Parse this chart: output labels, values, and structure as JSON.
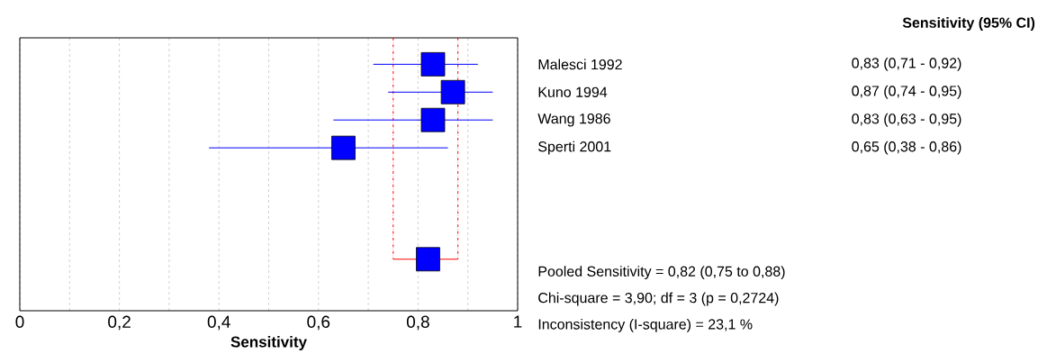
{
  "chart_data": {
    "type": "scatter",
    "orientation": "horizontal",
    "xlabel": "Sensitivity",
    "categories": [
      "Malesci 1992",
      "Kuno 1994",
      "Wang 1986",
      "Sperti 2001",
      null,
      null,
      null,
      null
    ],
    "series": [
      {
        "color": "#0000ff",
        "values": [
          0.83,
          0.87,
          0.83,
          0.65,
          null,
          null,
          null,
          null
        ],
        "errors": [
          [
            0.71,
            0.92
          ],
          [
            0.74,
            0.95
          ],
          [
            0.63,
            0.95
          ],
          [
            0.38,
            0.86
          ],
          null,
          null,
          null,
          null
        ],
        "value_labels": [
          "0,83    (0,71 - 0,92)",
          "0,87    (0,74 - 0,95)",
          "0,83    (0,63 - 0,95)",
          "0,65    (0,38 - 0,86)",
          null,
          null,
          null,
          null
        ]
      },
      {
        "color": "#0000ff",
        "values": [
          null,
          null,
          null,
          null,
          null,
          null,
          null,
          0.82
        ]
      }
    ],
    "xlim": [
      0,
      1
    ],
    "xticks": [
      0,
      {
        "value": 0.1,
        "label": null
      },
      {
        "value": 0.2,
        "label": "0,2"
      },
      {
        "value": 0.3,
        "label": null
      },
      {
        "value": 0.4,
        "label": "0,4"
      },
      {
        "value": 0.5,
        "label": null
      },
      {
        "value": 0.6,
        "label": "0,6"
      },
      {
        "value": 0.7,
        "label": null
      },
      {
        "value": 0.8,
        "label": "0,8"
      },
      {
        "value": 0.9,
        "label": null
      },
      1
    ],
    "ref_lines": [
      {
        "axis": "x",
        "value": 0.75,
        "color": "#ff0000",
        "line_style": "dashed"
      },
      {
        "axis": "x",
        "value": 0.88,
        "color": "#ff0000",
        "line_style": "dashed"
      }
    ],
    "annotations": [
      "Sensitivity (95% CI)",
      "Pooled Sensitivity = 0,82 (0,75 to 0,88)",
      "Chi-square = 3,90; df =  3 (p = 0,2724)",
      "Inconsistency (I-square) = 23,1 %"
    ],
    "grid": "x",
    "marker": "square"
  }
}
